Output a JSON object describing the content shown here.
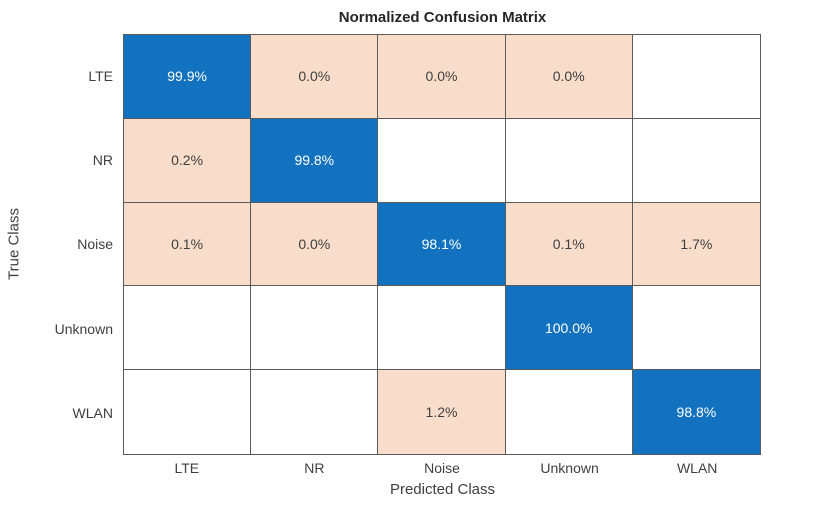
{
  "chart_data": {
    "type": "heatmap",
    "subtype": "confusion-matrix",
    "title": "Normalized Confusion Matrix",
    "xlabel": "Predicted Class",
    "ylabel": "True Class",
    "classes": [
      "LTE",
      "NR",
      "Noise",
      "Unknown",
      "WLAN"
    ],
    "true_class_axis": [
      "LTE",
      "NR",
      "Noise",
      "Unknown",
      "WLAN"
    ],
    "predicted_class_axis": [
      "LTE",
      "NR",
      "Noise",
      "Unknown",
      "WLAN"
    ],
    "values": [
      [
        99.9,
        0.0,
        0.0,
        0.0,
        null
      ],
      [
        0.2,
        99.8,
        null,
        null,
        null
      ],
      [
        0.1,
        0.0,
        98.1,
        0.1,
        1.7
      ],
      [
        null,
        null,
        null,
        100.0,
        null
      ],
      [
        null,
        null,
        1.2,
        null,
        98.8
      ]
    ],
    "cell_labels": [
      [
        "99.9%",
        "0.0%",
        "0.0%",
        "0.0%",
        null
      ],
      [
        "0.2%",
        "99.8%",
        null,
        null,
        null
      ],
      [
        "0.1%",
        "0.0%",
        "98.1%",
        "0.1%",
        "1.7%"
      ],
      [
        null,
        null,
        null,
        "100.0%",
        null
      ],
      [
        null,
        null,
        "1.2%",
        null,
        "98.8%"
      ]
    ],
    "units": "percent",
    "legend": "none",
    "grid": true,
    "colors": {
      "diagonal": "#1372bf",
      "off_diagonal": "#f9ddcb",
      "empty": "#ffffff",
      "text": "#3f3f3f",
      "text_on_diagonal": "#ffffff",
      "grid_line": "#5a5a5a"
    }
  }
}
